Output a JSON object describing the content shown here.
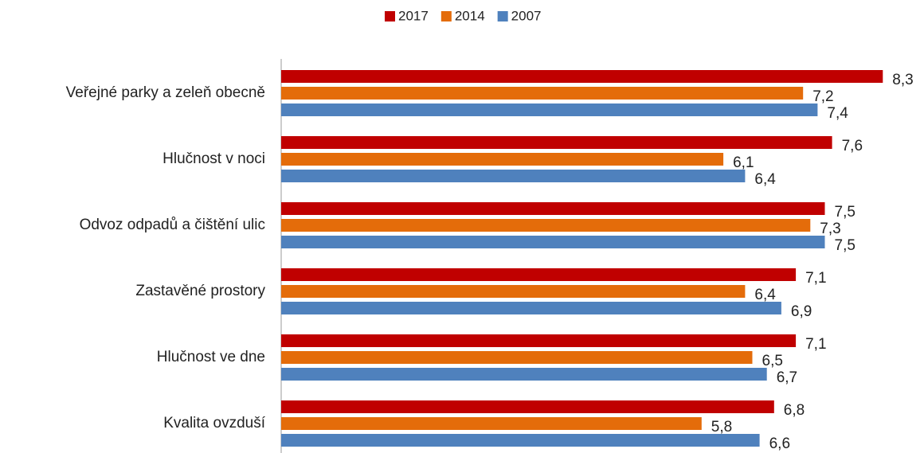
{
  "chart_data": {
    "type": "bar",
    "orientation": "horizontal",
    "categories": [
      "Veřejné parky a zeleň obecně",
      "Hlučnost v noci",
      "Odvoz odpadů a čištění ulic",
      "Zastavěné prostory",
      "Hlučnost ve dne",
      "Kvalita ovzduší"
    ],
    "series": [
      {
        "name": "2017",
        "color": "#c00000",
        "values": [
          8.3,
          7.6,
          7.5,
          7.1,
          7.1,
          6.8
        ],
        "value_labels": [
          "8,3",
          "7,6",
          "7,5",
          "7,1",
          "7,1",
          "6,8"
        ]
      },
      {
        "name": "2014",
        "color": "#e46c0a",
        "values": [
          7.2,
          6.1,
          7.3,
          6.4,
          6.5,
          5.8
        ],
        "value_labels": [
          "7,2",
          "6,1",
          "7,3",
          "6,4",
          "6,5",
          "5,8"
        ]
      },
      {
        "name": "2007",
        "color": "#4f81bd",
        "values": [
          7.4,
          6.4,
          7.5,
          6.9,
          6.7,
          6.6
        ],
        "value_labels": [
          "7,4",
          "6,4",
          "7,5",
          "6,9",
          "6,7",
          "6,6"
        ]
      }
    ],
    "xlim": [
      0,
      8.5
    ],
    "legend": "top"
  }
}
